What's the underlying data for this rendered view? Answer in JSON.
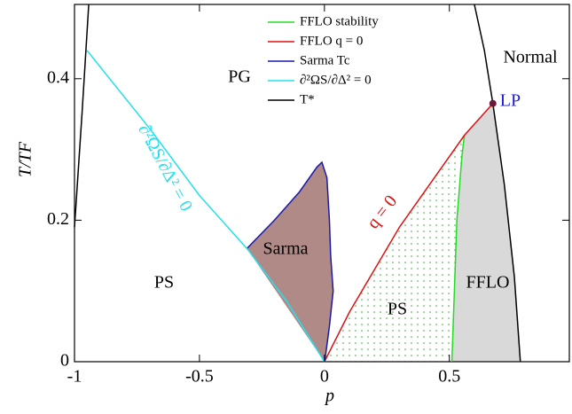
{
  "chart_data": {
    "type": "line",
    "xlabel": "p",
    "ylabel": "T/TF",
    "xlim": [
      -1,
      0.98
    ],
    "ylim": [
      0,
      0.505
    ],
    "xticks": [
      -1,
      -0.5,
      0,
      0.5
    ],
    "yticks": [
      0,
      0.2,
      0.4
    ],
    "legend": "top-right",
    "series": [
      {
        "name": "FFLO stability",
        "color": "#22dd22",
        "x": [
          0.51,
          0.52,
          0.53,
          0.55,
          0.56
        ],
        "y": [
          0,
          0.1,
          0.2,
          0.29,
          0.32
        ]
      },
      {
        "name": "FFLO q = 0",
        "color": "#dd1111",
        "x": [
          0,
          0.1,
          0.2,
          0.3,
          0.4,
          0.5,
          0.56,
          0.674
        ],
        "y": [
          0,
          0.07,
          0.13,
          0.19,
          0.24,
          0.29,
          0.32,
          0.365
        ]
      },
      {
        "name": "Sarma Tc",
        "color": "#1a1aaa",
        "fill": "#b08a86",
        "x": [
          -0.31,
          -0.2,
          -0.1,
          -0.03,
          -0.01,
          0.01,
          0.02,
          0.025,
          0.035,
          0.02,
          0.005,
          0
        ],
        "y": [
          0.16,
          0.2,
          0.24,
          0.275,
          0.282,
          0.26,
          0.2,
          0.15,
          0.1,
          0.05,
          0.01,
          0
        ]
      },
      {
        "name": "∂²ΩS/∂Δ² = 0",
        "color": "#22e0f0",
        "x": [
          -0.95,
          -0.7,
          -0.5,
          -0.31,
          -0.15,
          0
        ],
        "y": [
          0.44,
          0.33,
          0.235,
          0.16,
          0.085,
          0
        ]
      },
      {
        "name": "T*",
        "color": "#000000",
        "x": [
          -1,
          -0.97,
          -0.943,
          null,
          0.6,
          0.64,
          0.674,
          0.72,
          0.76,
          0.784
        ],
        "y": [
          0.19,
          0.35,
          0.505,
          null,
          0.505,
          0.44,
          0.365,
          0.25,
          0.12,
          0
        ]
      }
    ],
    "points": [
      {
        "label": "LP",
        "x": 0.674,
        "y": 0.365,
        "color": "#6b1a3a"
      }
    ],
    "annotations": [
      "PG",
      "PS",
      "Sarma",
      "PS",
      "FFLO",
      "Normal",
      "q = 0",
      "∂²ΩS/∂Δ² = 0"
    ]
  }
}
